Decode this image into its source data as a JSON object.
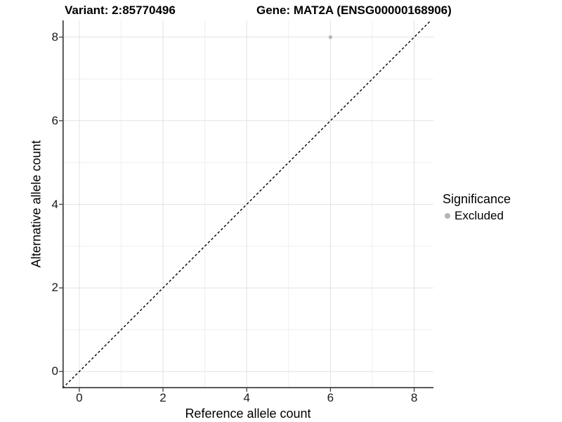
{
  "chart_data": {
    "type": "scatter",
    "titles": {
      "left": "Variant: 2:85770496",
      "right": "Gene: MAT2A (ENSG00000168906)"
    },
    "xlabel": "Reference allele count",
    "ylabel": "Alternative allele count",
    "xlim": [
      -0.4,
      8.46
    ],
    "ylim": [
      -0.4,
      8.4
    ],
    "xticks": [
      0,
      2,
      4,
      6,
      8
    ],
    "yticks": [
      0,
      2,
      4,
      6,
      8
    ],
    "xticks_minor": [
      1,
      3,
      5,
      7
    ],
    "yticks_minor": [
      1,
      3,
      5,
      7
    ],
    "grid": "major+minor",
    "points": [
      {
        "x": 6,
        "y": 8,
        "series": "Excluded"
      }
    ],
    "reference_line": {
      "equation": "y = x",
      "style": "dashed",
      "color": "#000000"
    },
    "legend": {
      "title": "Significance",
      "position": "right",
      "entries": [
        {
          "label": "Excluded",
          "color": "#b5b5b5"
        }
      ]
    },
    "colors": {
      "point": "#b5b5b5",
      "grid_major": "#e2e2e2",
      "grid_minor": "#efefef",
      "axis_line": "#333333",
      "tick_mark": "#4d4d4d",
      "text": "#000000"
    }
  }
}
